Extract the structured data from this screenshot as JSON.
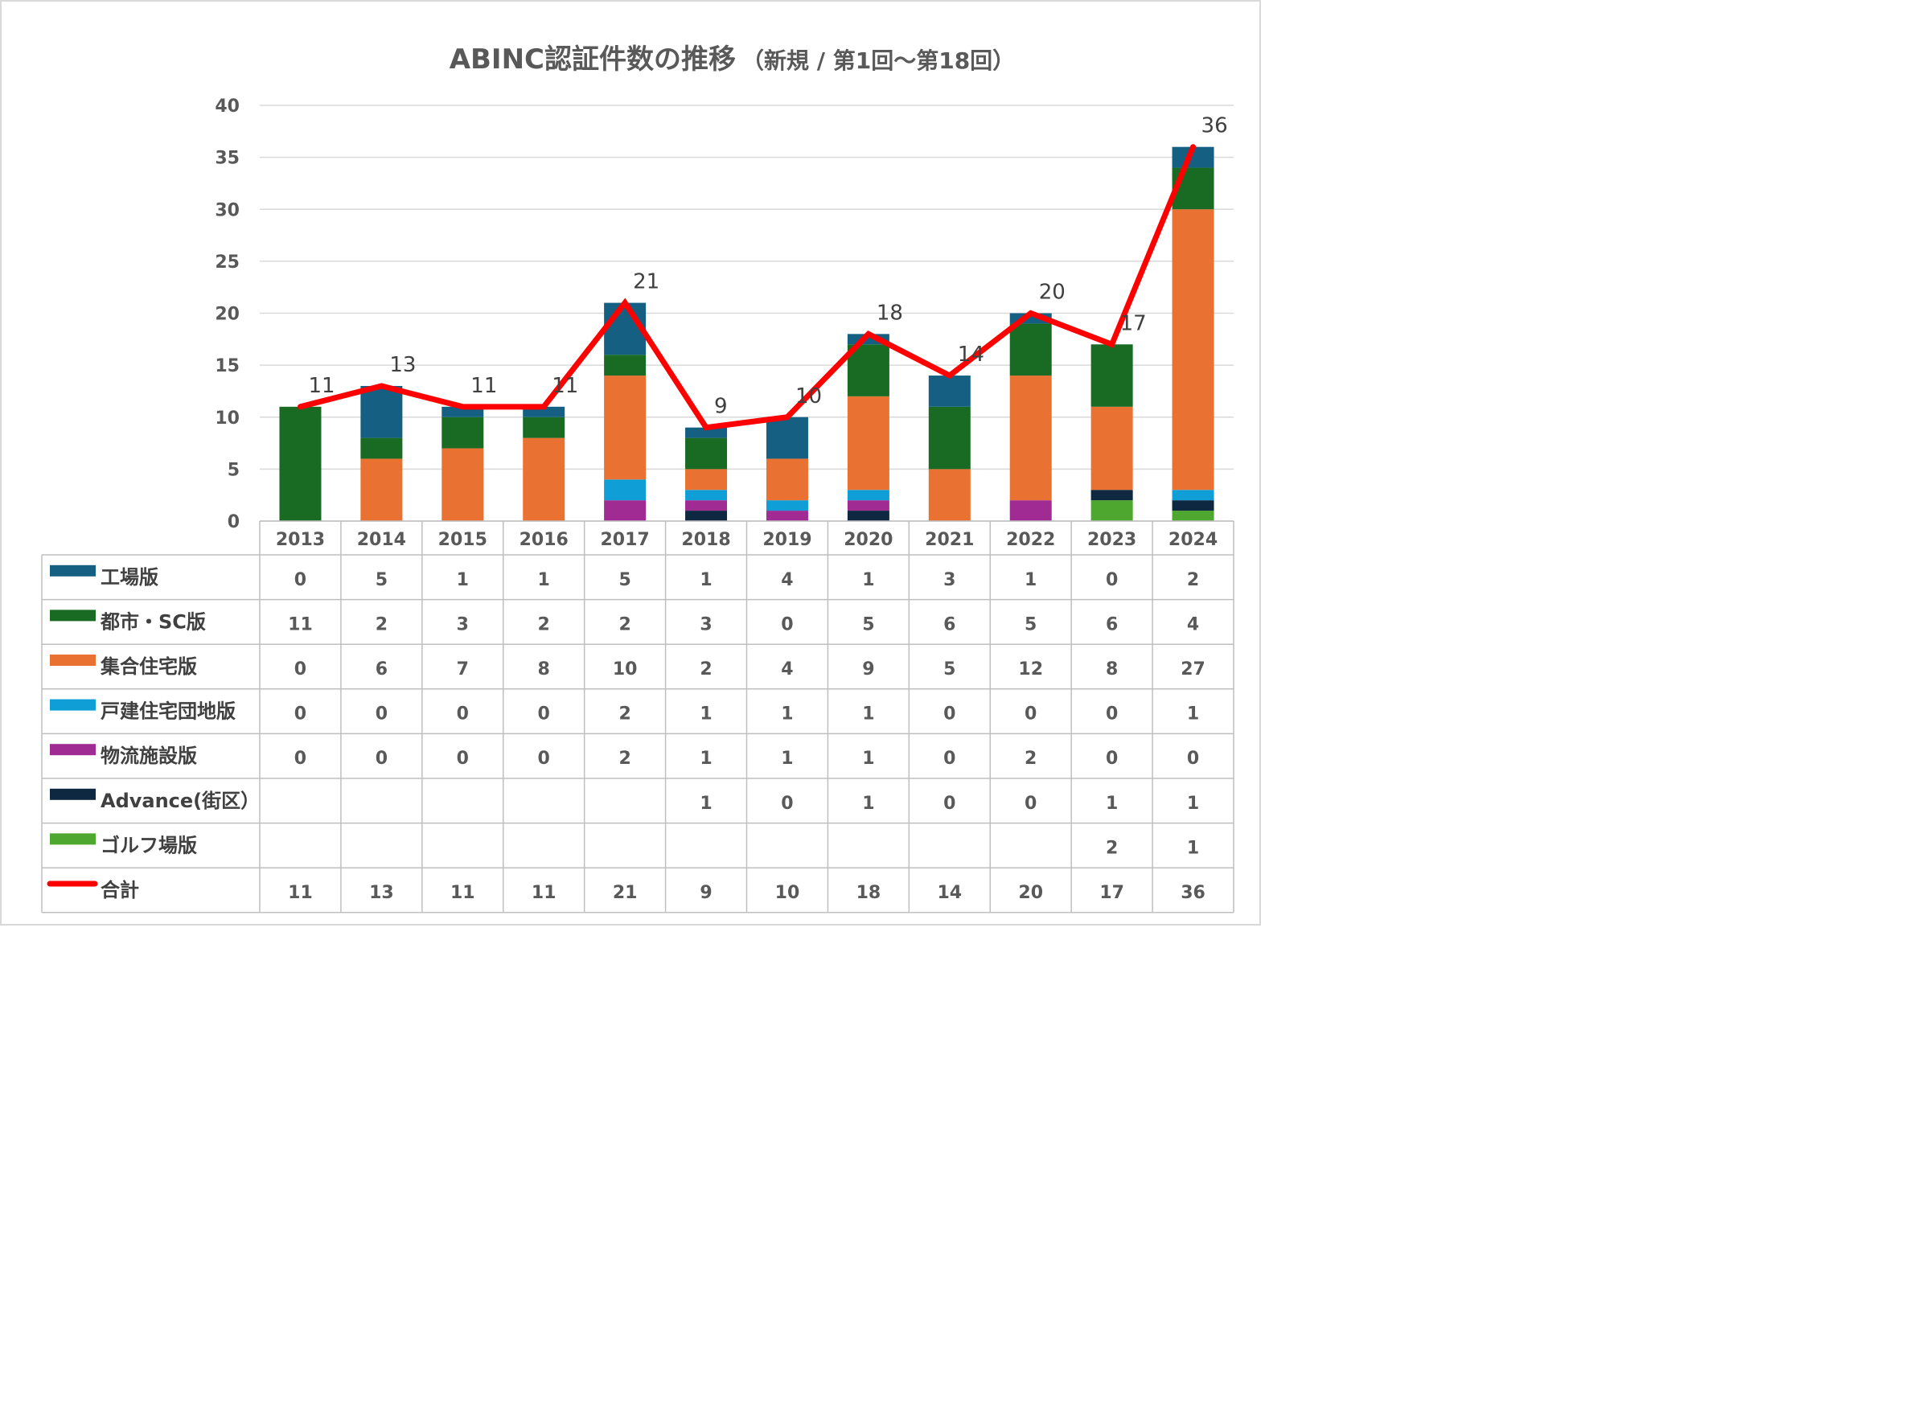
{
  "chart_data": {
    "type": "bar",
    "stacked": true,
    "title": "ABINC認証件数の推移",
    "subtitle": "（新規 / 第1回～第18回）",
    "categories": [
      "2013",
      "2014",
      "2015",
      "2016",
      "2017",
      "2018",
      "2019",
      "2020",
      "2021",
      "2022",
      "2023",
      "2024"
    ],
    "ylim": [
      0,
      40
    ],
    "yticks": [
      0,
      5,
      10,
      15,
      20,
      25,
      30,
      35,
      40
    ],
    "grid": true,
    "legend_placement": "data-table-left",
    "series": [
      {
        "name": "ゴルフ場版",
        "color": "#4ea72e",
        "values": [
          null,
          null,
          null,
          null,
          null,
          null,
          null,
          null,
          null,
          null,
          2,
          1
        ]
      },
      {
        "name": "Advance(街区）",
        "color": "#0e2841",
        "values": [
          null,
          null,
          null,
          null,
          null,
          1,
          0,
          1,
          0,
          0,
          1,
          1
        ]
      },
      {
        "name": "物流施設版",
        "color": "#a02b93",
        "values": [
          0,
          0,
          0,
          0,
          2,
          1,
          1,
          1,
          0,
          2,
          0,
          0
        ]
      },
      {
        "name": "戸建住宅団地版",
        "color": "#0f9ed5",
        "values": [
          0,
          0,
          0,
          0,
          2,
          1,
          1,
          1,
          0,
          0,
          0,
          1
        ]
      },
      {
        "name": "集合住宅版",
        "color": "#e97132",
        "values": [
          0,
          6,
          7,
          8,
          10,
          2,
          4,
          9,
          5,
          12,
          8,
          27
        ]
      },
      {
        "name": "都市・SC版",
        "color": "#196b24",
        "values": [
          11,
          2,
          3,
          2,
          2,
          3,
          0,
          5,
          6,
          5,
          6,
          4
        ]
      },
      {
        "name": "工場版",
        "color": "#156082",
        "values": [
          0,
          5,
          1,
          1,
          5,
          1,
          4,
          1,
          3,
          1,
          0,
          2
        ]
      }
    ],
    "total": {
      "name": "合計",
      "type": "line",
      "color": "#ff0000",
      "values": [
        11,
        13,
        11,
        11,
        21,
        9,
        10,
        18,
        14,
        20,
        17,
        36
      ]
    },
    "table_row_order": [
      "工場版",
      "都市・SC版",
      "集合住宅版",
      "戸建住宅団地版",
      "物流施設版",
      "Advance(街区）",
      "ゴルフ場版",
      "合計"
    ]
  }
}
